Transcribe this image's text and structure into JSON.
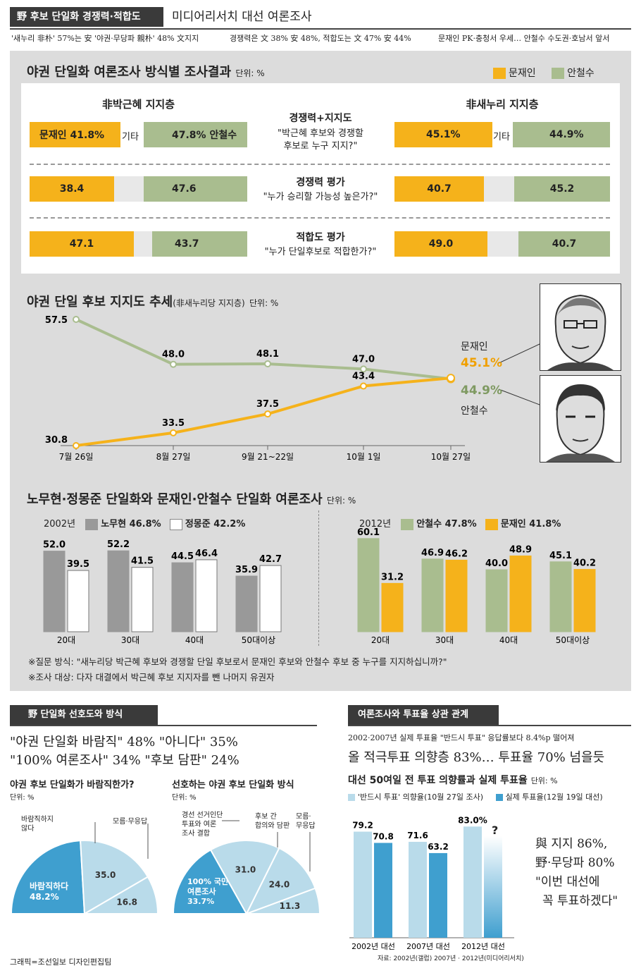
{
  "header": {
    "tag": "野 후보 단일화 경쟁력·적합도",
    "title": "미디어리서치 대선 여론조사",
    "sub1": "'새누리 非朴' 57%는 安 '야권·무당파 親朴' 48% 文지지",
    "sub2": "경쟁력은 文 38% 安 48%, 적합도는 文 47% 安 44%",
    "sub3": "문재인 PK·충청서 우세… 안철수 수도권·호남서 앞서"
  },
  "colors": {
    "moon": "#f5b21b",
    "ahn": "#a9bd8f",
    "roh": "#999999",
    "chung": "#ffffff",
    "blue_dark": "#3f9fcf",
    "blue_light": "#b9dbea"
  },
  "section1": {
    "title": "야권 단일화 여론조사 방식별 조사결과",
    "unit": "단위: %",
    "legend": [
      "문재인",
      "안철수"
    ],
    "left_head": "非박근혜 지지층",
    "right_head": "非새누리 지지층",
    "etc": "기타",
    "row1_l_moon": "문재인 41.8%",
    "row1_l_ahn": "47.8% 안철수",
    "row1_r_moon": "45.1%",
    "row1_r_ahn": "44.9%",
    "q1_title": "경쟁력+지지도",
    "q1_l1": "\"박근혜 후보와 경쟁할",
    "q1_l2": "후보로 누구 지지?\"",
    "row2_l_moon": "38.4",
    "row2_l_ahn": "47.6",
    "row2_r_moon": "40.7",
    "row2_r_ahn": "45.2",
    "q2_title": "경쟁력 평가",
    "q2_l1": "\"누가 승리할 가능성 높은가?\"",
    "row3_l_moon": "47.1",
    "row3_l_ahn": "43.7",
    "row3_r_moon": "49.0",
    "row3_r_ahn": "40.7",
    "q3_title": "적합도 평가",
    "q3_l1": "\"누가 단일후보로 적합한가?\""
  },
  "section2": {
    "title": "야권 단일 후보 지지도 추세",
    "note": "(非새누리당 지지층)",
    "unit": "단위: %",
    "moon_name": "문재인",
    "ahn_name": "안철수",
    "moon_last": "45.1%",
    "ahn_last": "44.9%"
  },
  "section3": {
    "title": "노무현·정몽준 단일화와 문재인·안철수 단일화 여론조사",
    "unit": "단위: %",
    "left_year": "2002년",
    "left_leg1": "노무현 46.8%",
    "left_leg2": "정몽준 42.2%",
    "right_year": "2012년",
    "right_leg1": "안철수 47.8%",
    "right_leg2": "문재인 41.8%",
    "note1": "※질문 방식: \"새누리당 박근혜 후보와 경쟁할 단일 후보로서 문재인 후보와 안철수 후보 중 누구를 지지하십니까?\"",
    "note2": "※조사 대상: 다자 대결에서 박근혜 후보 지지자를 뺀 나머지 유권자"
  },
  "section4": {
    "tag": "野 단일화 선호도와 방식",
    "head1": "\"야권 단일화 바람직\" 48% \"아니다\" 35%",
    "head2": "\"100% 여론조사\" 34% \"후보 담판\" 24%",
    "q_left": "야권 후보 단일화가 바람직한가?",
    "q_right": "선호하는 야권 후보 단일화 방식",
    "unit": "단위: %",
    "left_lab_no1": "바람직하지",
    "left_lab_no2": "않다",
    "left_lab_dk": "모름·무응답",
    "left_lab_yes": "바람직하다",
    "right_lab_a1": "경선 선거인단",
    "right_lab_a2": "투표와 여론",
    "right_lab_a3": "조사 결합",
    "right_lab_b1": "후보 간",
    "right_lab_b2": "합의와 담판",
    "right_lab_c1": "모름·",
    "right_lab_c2": "무응답",
    "right_lab_d1": "100% 국민",
    "right_lab_d2": "여론조사",
    "credit": "그래픽=조선일보 디자인편집팀"
  },
  "section5": {
    "tag": "여론조사와 투표율 상관 관계",
    "sub": "2002·2007년 실제 투표율 \"반드시 투표\" 응답률보다 8.4%p 떨어져",
    "head": "올 적극투표 의향층 83%… 투표율 70% 넘을듯",
    "ctitle": "대선 50여일 전 투표 의향률과 실제 투표율",
    "unit": "단위: %",
    "leg1": "'반드시 투표' 의향율(10월 27일 조사)",
    "leg2": "실제 투표율(12월 19일 대선)",
    "q": "?",
    "quote1": "與 지지 86%,",
    "quote2": "野·무당파 80%",
    "quote3": "\"이번 대선에",
    "quote4": "꼭 투표하겠다\"",
    "source": "자료: 2002년(갤럽) 2007년 · 2012년(미디어리서치)"
  },
  "chart_data": [
    {
      "type": "bar",
      "title": "야권 단일화 여론조사 방식별 조사결과",
      "categories": [
        "경쟁력+지지도",
        "경쟁력 평가",
        "적합도 평가"
      ],
      "series": [
        {
          "name": "문재인 (非박근혜 지지층)",
          "values": [
            41.8,
            38.4,
            47.1
          ]
        },
        {
          "name": "안철수 (非박근혜 지지층)",
          "values": [
            47.8,
            47.6,
            43.7
          ]
        },
        {
          "name": "문재인 (非새누리 지지층)",
          "values": [
            45.1,
            40.7,
            49.0
          ]
        },
        {
          "name": "안철수 (非새누리 지지층)",
          "values": [
            44.9,
            45.2,
            40.7
          ]
        }
      ]
    },
    {
      "type": "line",
      "title": "야권 단일 후보 지지도 추세",
      "categories": [
        "7월 26일",
        "8월 27일",
        "9월 21~22일",
        "10월 1일",
        "10월 27일"
      ],
      "series": [
        {
          "name": "안철수",
          "values": [
            57.5,
            48.0,
            48.1,
            47.0,
            44.9
          ],
          "labels": [
            "57.5",
            "48.0",
            "48.1",
            "47.0",
            ""
          ]
        },
        {
          "name": "문재인",
          "values": [
            30.8,
            33.5,
            37.5,
            43.4,
            45.1
          ],
          "labels": [
            "30.8",
            "33.5",
            "37.5",
            "43.4",
            ""
          ]
        }
      ],
      "ylim": [
        25,
        60
      ]
    },
    {
      "type": "bar",
      "title": "2002년",
      "categories": [
        "20대",
        "30대",
        "40대",
        "50대이상"
      ],
      "series": [
        {
          "name": "노무현",
          "values": [
            52.0,
            52.2,
            44.5,
            35.9
          ],
          "labels": [
            "52.0",
            "52.2",
            "44.5",
            "35.9"
          ]
        },
        {
          "name": "정몽준",
          "values": [
            39.5,
            41.5,
            46.4,
            42.7
          ],
          "labels": [
            "39.5",
            "41.5",
            "46.4",
            "42.7"
          ]
        }
      ]
    },
    {
      "type": "bar",
      "title": "2012년",
      "categories": [
        "20대",
        "30대",
        "40대",
        "50대이상"
      ],
      "series": [
        {
          "name": "안철수",
          "values": [
            60.1,
            46.9,
            40.0,
            45.1
          ],
          "labels": [
            "60.1",
            "46.9",
            "40.0",
            "45.1"
          ]
        },
        {
          "name": "문재인",
          "values": [
            31.2,
            46.2,
            48.9,
            40.2
          ],
          "labels": [
            "31.2",
            "46.2",
            "48.9",
            "40.2"
          ]
        }
      ]
    },
    {
      "type": "pie",
      "title": "야권 후보 단일화가 바람직한가?",
      "categories": [
        "바람직하다",
        "바람직하지 않다",
        "모름·무응답"
      ],
      "values": [
        48.2,
        35.0,
        16.8
      ],
      "labels": [
        "48.2%",
        "35.0",
        "16.8"
      ]
    },
    {
      "type": "pie",
      "title": "선호하는 야권 후보 단일화 방식",
      "categories": [
        "100% 국민 여론조사",
        "경선 선거인단 투표와 여론 조사 결합",
        "후보 간 합의와 담판",
        "모름·무응답"
      ],
      "values": [
        33.7,
        31.0,
        24.0,
        11.3
      ],
      "labels": [
        "33.7%",
        "31.0",
        "24.0",
        "11.3"
      ]
    },
    {
      "type": "bar",
      "title": "대선 50여일 전 투표 의향률과 실제 투표율",
      "categories": [
        "2002년 대선",
        "2007년 대선",
        "2012년 대선"
      ],
      "series": [
        {
          "name": "'반드시 투표' 의향율(10월 27일 조사)",
          "values": [
            79.2,
            71.6,
            83.0
          ],
          "labels": [
            "79.2",
            "71.6",
            "83.0%"
          ]
        },
        {
          "name": "실제 투표율(12월 19일 대선)",
          "values": [
            70.8,
            63.2,
            null
          ],
          "labels": [
            "70.8",
            "63.2",
            ""
          ]
        }
      ]
    }
  ]
}
